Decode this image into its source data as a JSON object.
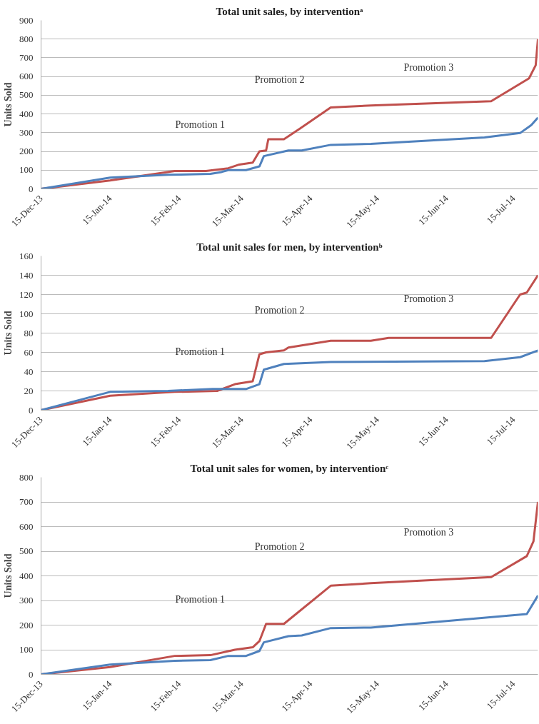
{
  "chart_data": [
    {
      "type": "line",
      "title": "Total unit sales, by interventionᵃ",
      "ylabel": "Units Sold",
      "grid": "y",
      "xlim": [
        "2013-12-15",
        "2014-07-26"
      ],
      "xticks": [
        {
          "value": "2013-12-15",
          "label": "15-Dec-13"
        },
        {
          "value": "2014-01-15",
          "label": "15-Jan-14"
        },
        {
          "value": "2014-02-15",
          "label": "15-Feb-14"
        },
        {
          "value": "2014-03-15",
          "label": "15-Mar-14"
        },
        {
          "value": "2014-04-15",
          "label": "15-Apr-14"
        },
        {
          "value": "2014-05-15",
          "label": "15-May-14"
        },
        {
          "value": "2014-06-15",
          "label": "15-Jun-14"
        },
        {
          "value": "2014-07-15",
          "label": "15-Jul-14"
        }
      ],
      "ylim": [
        0,
        900
      ],
      "yticks": [
        0,
        100,
        200,
        300,
        400,
        500,
        600,
        700,
        800,
        900
      ],
      "series": [
        {
          "color": "#c0504d",
          "x": [
            "2013-12-15",
            "2014-01-15",
            "2014-02-13",
            "2014-02-27",
            "2014-03-09",
            "2014-03-14",
            "2014-03-20",
            "2014-03-23",
            "2014-03-26",
            "2014-03-27",
            "2014-04-03",
            "2014-04-10",
            "2014-04-24",
            "2014-05-12",
            "2014-07-05",
            "2014-07-22",
            "2014-07-25",
            "2014-07-26"
          ],
          "values": [
            0,
            45,
            95,
            95,
            110,
            130,
            140,
            200,
            205,
            265,
            265,
            320,
            435,
            445,
            468,
            590,
            660,
            800
          ]
        },
        {
          "color": "#4f81bd",
          "x": [
            "2013-12-15",
            "2014-01-15",
            "2014-02-10",
            "2014-03-01",
            "2014-03-06",
            "2014-03-09",
            "2014-03-17",
            "2014-03-23",
            "2014-03-25",
            "2014-04-05",
            "2014-04-11",
            "2014-04-24",
            "2014-05-12",
            "2014-07-02",
            "2014-07-18",
            "2014-07-23",
            "2014-07-26"
          ],
          "values": [
            0,
            60,
            75,
            80,
            90,
            100,
            100,
            120,
            175,
            205,
            205,
            235,
            240,
            275,
            298,
            340,
            380
          ]
        }
      ],
      "annotations": [
        "Promotion 1",
        "Promotion 2",
        "Promotion 3"
      ]
    },
    {
      "type": "line",
      "title": "Total unit sales for men, by interventionᵇ",
      "ylabel": "Units Sold",
      "grid": "y",
      "xlim": [
        "2013-12-15",
        "2014-07-26"
      ],
      "xticks": [
        {
          "value": "2013-12-15",
          "label": "15-Dec-13"
        },
        {
          "value": "2014-01-15",
          "label": "15-Jan-14"
        },
        {
          "value": "2014-02-15",
          "label": "15-Feb-14"
        },
        {
          "value": "2014-03-15",
          "label": "15-Mar-14"
        },
        {
          "value": "2014-04-15",
          "label": "15-Apr-14"
        },
        {
          "value": "2014-05-15",
          "label": "15-May-14"
        },
        {
          "value": "2014-06-15",
          "label": "15-Jun-14"
        },
        {
          "value": "2014-07-15",
          "label": "15-Jul-14"
        }
      ],
      "ylim": [
        0,
        160
      ],
      "yticks": [
        0,
        20,
        40,
        60,
        80,
        100,
        120,
        140,
        160
      ],
      "series": [
        {
          "color": "#c0504d",
          "x": [
            "2013-12-15",
            "2014-01-15",
            "2014-02-13",
            "2014-03-04",
            "2014-03-12",
            "2014-03-20",
            "2014-03-23",
            "2014-03-26",
            "2014-04-03",
            "2014-04-05",
            "2014-04-24",
            "2014-05-12",
            "2014-05-20",
            "2014-07-05",
            "2014-07-18",
            "2014-07-21",
            "2014-07-26"
          ],
          "values": [
            0,
            15,
            19,
            20,
            27,
            30,
            58,
            60,
            62,
            65,
            72,
            72,
            75,
            75,
            120,
            122,
            140
          ]
        },
        {
          "color": "#4f81bd",
          "x": [
            "2013-12-15",
            "2014-01-15",
            "2014-02-10",
            "2014-03-02",
            "2014-03-17",
            "2014-03-23",
            "2014-03-25",
            "2014-04-03",
            "2014-04-24",
            "2014-07-02",
            "2014-07-18",
            "2014-07-26"
          ],
          "values": [
            0,
            19,
            20,
            22,
            22,
            27,
            42,
            48,
            50,
            51,
            55,
            62
          ]
        }
      ],
      "annotations": [
        "Promotion 1",
        "Promotion 2",
        "Promotion 3"
      ]
    },
    {
      "type": "line",
      "title": "Total unit sales for women, by interventionᶜ",
      "ylabel": "Units Sold",
      "grid": "y",
      "xlim": [
        "2013-12-15",
        "2014-07-26"
      ],
      "xticks": [
        {
          "value": "2013-12-15",
          "label": "15-Dec-13"
        },
        {
          "value": "2014-01-15",
          "label": "15-Jan-14"
        },
        {
          "value": "2014-02-15",
          "label": "15-Feb-14"
        },
        {
          "value": "2014-03-15",
          "label": "15-Mar-14"
        },
        {
          "value": "2014-04-15",
          "label": "15-Apr-14"
        },
        {
          "value": "2014-05-15",
          "label": "15-May-14"
        },
        {
          "value": "2014-06-15",
          "label": "15-Jun-14"
        },
        {
          "value": "2014-07-15",
          "label": "15-Jul-14"
        }
      ],
      "ylim": [
        0,
        800
      ],
      "yticks": [
        0,
        100,
        200,
        300,
        400,
        500,
        600,
        700,
        800
      ],
      "series": [
        {
          "color": "#c0504d",
          "x": [
            "2013-12-15",
            "2014-01-15",
            "2014-02-13",
            "2014-03-01",
            "2014-03-12",
            "2014-03-20",
            "2014-03-23",
            "2014-03-26",
            "2014-04-03",
            "2014-04-24",
            "2014-05-12",
            "2014-07-05",
            "2014-07-21",
            "2014-07-24",
            "2014-07-26"
          ],
          "values": [
            0,
            30,
            75,
            78,
            100,
            110,
            135,
            205,
            205,
            360,
            370,
            395,
            480,
            540,
            700
          ]
        },
        {
          "color": "#4f81bd",
          "x": [
            "2013-12-15",
            "2014-01-15",
            "2014-02-13",
            "2014-03-01",
            "2014-03-09",
            "2014-03-17",
            "2014-03-23",
            "2014-03-25",
            "2014-04-05",
            "2014-04-11",
            "2014-04-24",
            "2014-05-12",
            "2014-07-21",
            "2014-07-26"
          ],
          "values": [
            0,
            40,
            55,
            58,
            75,
            75,
            95,
            130,
            155,
            158,
            188,
            190,
            245,
            320
          ]
        }
      ],
      "annotations": [
        "Promotion 1",
        "Promotion 2",
        "Promotion 3"
      ]
    }
  ]
}
